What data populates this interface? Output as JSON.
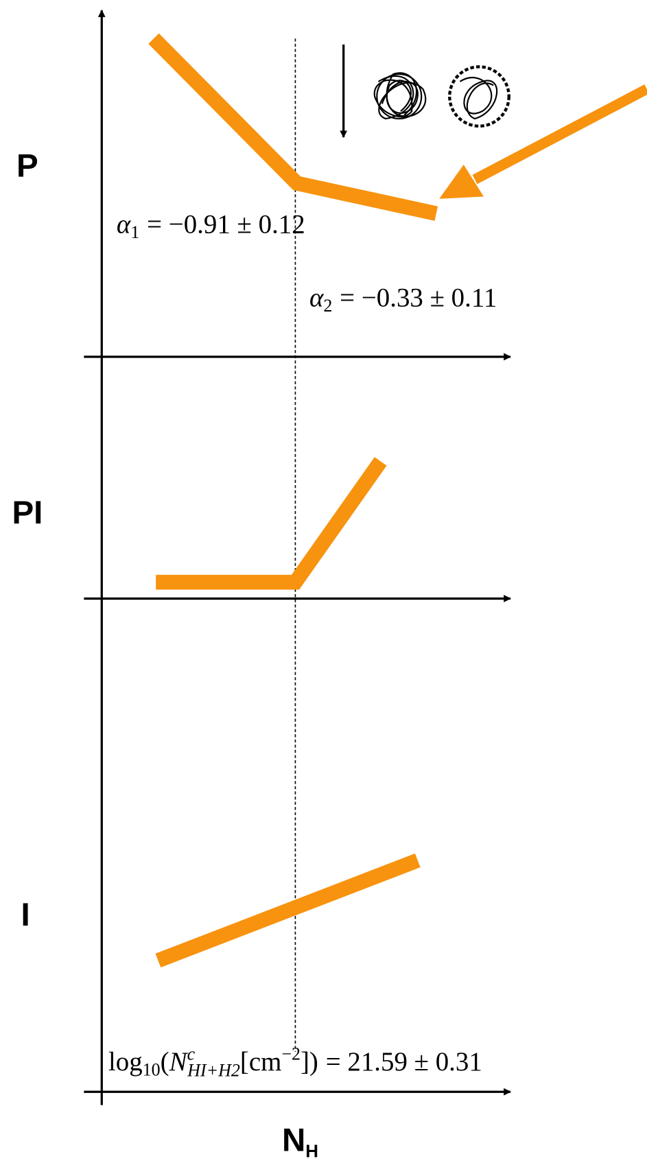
{
  "panels": [
    {
      "label": "P"
    },
    {
      "label": "PI"
    },
    {
      "label": "I"
    }
  ],
  "x_axis_label": {
    "main": "N",
    "sub": "H"
  },
  "annotations": {
    "alpha1": {
      "symbol": "α",
      "subscript": "1",
      "expression": "= −0.91 ± 0.12"
    },
    "alpha2": {
      "symbol": "α",
      "subscript": "2",
      "expression": "= −0.33 ± 0.11"
    },
    "column_density": {
      "function": "log",
      "function_subscript": "10",
      "open": "(",
      "symbol": "N",
      "superscript": "c",
      "subscript": "HI+H2",
      "unit_open": "[cm",
      "unit_exponent": "−2",
      "close": "])",
      "expression": "= 21.59 ± 0.31"
    }
  }
}
